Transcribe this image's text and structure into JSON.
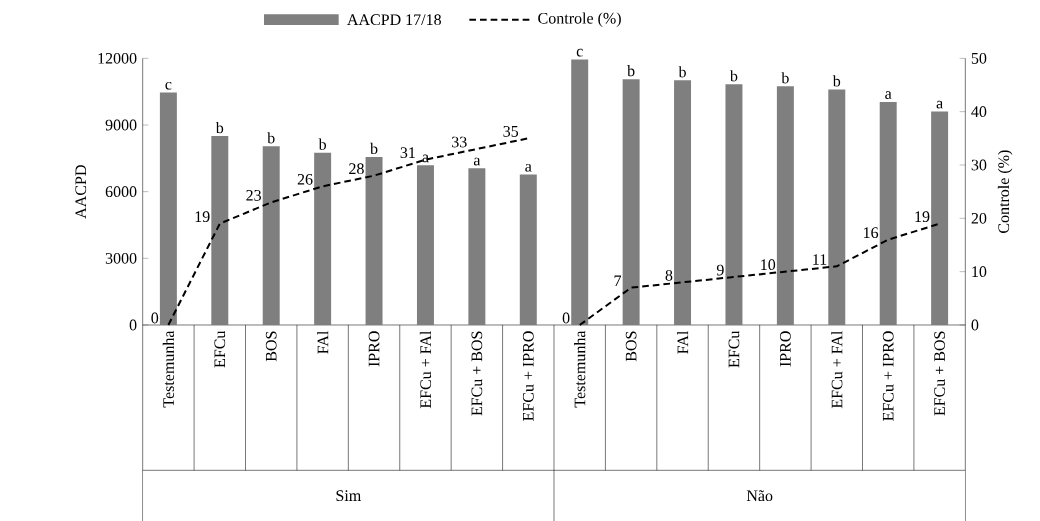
{
  "chart_data": {
    "type": "bar",
    "categories": [
      "Testemunha",
      "EFCu",
      "BOS",
      "FAl",
      "IPRO",
      "EFCu + FAl",
      "EFCu + BOS",
      "EFCu + IPRO",
      "Testemunha",
      "BOS",
      "FAl",
      "EFCu",
      "IPRO",
      "EFCu + FAl",
      "EFCu + IPRO",
      "EFCu + BOS"
    ],
    "ylabel": "AACPD",
    "y2label": "Controle (%)",
    "ylim": [
      0,
      12000
    ],
    "yticks": [
      0,
      3000,
      6000,
      9000,
      12000
    ],
    "y2lim": [
      0,
      50
    ],
    "y2ticks": [
      0,
      10,
      20,
      30,
      40,
      50
    ],
    "legend": "top",
    "grid": false,
    "annotations": [
      "Sim",
      "Não"
    ],
    "series": [
      {
        "name": "AACPD 17/18",
        "color": "#7f7f7f",
        "values": [
          10460,
          8500,
          8040,
          7750,
          7560,
          7190,
          7050,
          6770,
          11950,
          11060,
          11010,
          10830,
          10740,
          10600,
          10040,
          9610
        ],
        "value_labels": [
          "c",
          "b",
          "b",
          "b",
          "b",
          "a",
          "a",
          "a",
          "c",
          "b",
          "b",
          "b",
          "b",
          "b",
          "a",
          "a"
        ]
      },
      {
        "name": "Controle (%)",
        "type": "line",
        "axis": "y2",
        "color": "#000000",
        "line_style": "dashed",
        "marker": "none",
        "values": [
          0,
          19,
          23,
          26,
          28,
          31,
          33,
          35,
          null,
          null,
          null,
          null,
          null,
          null,
          null,
          null
        ],
        "value_labels": [
          "0",
          "19",
          "23",
          "26",
          "28",
          "31",
          "33",
          "35",
          null,
          null,
          null,
          null,
          null,
          null,
          null,
          null
        ]
      },
      {
        "type": "line",
        "axis": "y2",
        "color": "#000000",
        "line_style": "dashed",
        "marker": "none",
        "values": [
          null,
          null,
          null,
          null,
          null,
          null,
          null,
          null,
          0,
          7,
          8,
          9,
          10,
          11,
          16,
          19
        ],
        "value_labels": [
          null,
          null,
          null,
          null,
          null,
          null,
          null,
          null,
          "0",
          "7",
          "8",
          "9",
          "10",
          "11",
          "16",
          "19"
        ]
      }
    ]
  }
}
